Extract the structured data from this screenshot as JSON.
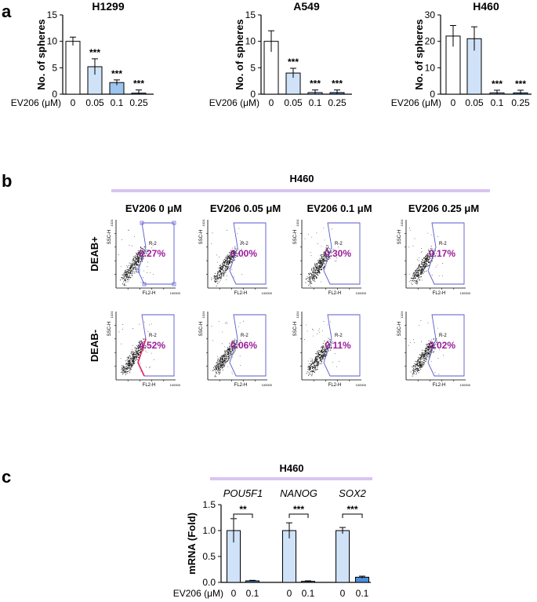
{
  "figure": {
    "panel_labels": {
      "a": "a",
      "b": "b",
      "c": "c"
    },
    "colors": {
      "white_bar": "#ffffff",
      "light_blue_bar": "#cfe2f8",
      "mid_blue_bar": "#9cc5ef",
      "dark_blue_bar": "#4b8fdc",
      "lavender_rule": "#d8c4f2",
      "gate_blue": "#5a5acd",
      "percent_purple": "#9b1c9b",
      "gate_pink": "#e0205a"
    }
  },
  "chart_data": [
    {
      "type": "bar",
      "panel": "a",
      "title": "H1299",
      "ylabel": "No. of spheres",
      "xlabel_prefix": "EV206 (μM)",
      "categories": [
        "0",
        "0.05",
        "0.1",
        "0.25"
      ],
      "values": [
        10,
        5.2,
        2.2,
        0.2
      ],
      "errors": [
        0.8,
        1.5,
        0.5,
        0.6
      ],
      "significance": [
        "",
        "***",
        "***",
        "***"
      ],
      "bar_colors": [
        "#ffffff",
        "#cfe2f8",
        "#9cc5ef",
        "#4b8fdc"
      ],
      "ylim": [
        0,
        15
      ],
      "yticks": [
        "0",
        "5",
        "10",
        "15"
      ]
    },
    {
      "type": "bar",
      "panel": "a",
      "title": "A549",
      "ylabel": "No. of spheres",
      "xlabel_prefix": "EV206 (μM)",
      "categories": [
        "0",
        "0.05",
        "0.1",
        "0.25"
      ],
      "values": [
        10,
        4,
        0.3,
        0.3
      ],
      "errors": [
        2,
        0.9,
        0.5,
        0.5
      ],
      "significance": [
        "",
        "***",
        "***",
        "***"
      ],
      "bar_colors": [
        "#ffffff",
        "#cfe2f8",
        "#9cc5ef",
        "#4b8fdc"
      ],
      "ylim": [
        0,
        15
      ],
      "yticks": [
        "0",
        "5",
        "10",
        "15"
      ]
    },
    {
      "type": "bar",
      "panel": "a",
      "title": "H460",
      "ylabel": "No. of spheres",
      "xlabel_prefix": "EV206 (μM)",
      "categories": [
        "0",
        "0.05",
        "0.1",
        "0.25"
      ],
      "values": [
        22,
        21,
        0.5,
        0.5
      ],
      "errors": [
        4,
        4.5,
        1,
        1
      ],
      "significance": [
        "",
        "",
        "***",
        "***"
      ],
      "bar_colors": [
        "#ffffff",
        "#cfe2f8",
        "#9cc5ef",
        "#4b8fdc"
      ],
      "ylim": [
        0,
        30
      ],
      "yticks": [
        "0",
        "10",
        "20",
        "30"
      ]
    },
    {
      "type": "scatter",
      "panel": "b",
      "title": "H460",
      "columns": [
        "EV206 0 μM",
        "EV206 0.05 μM",
        "EV206 0.1 μM",
        "EV206 0.25 μM"
      ],
      "rows": [
        "DEAB+",
        "DEAB-"
      ],
      "percentages": [
        [
          "0.27%",
          "0.00%",
          "0.30%",
          "0.17%"
        ],
        [
          "4.52%",
          "0.06%",
          "0.11%",
          "0.02%"
        ]
      ],
      "gate_label": "R-2",
      "xlabel": "FL2-H",
      "ylabel": "SSC-H",
      "x_max_tick": "100000",
      "y_max_tick": "1024"
    },
    {
      "type": "bar",
      "panel": "c",
      "title": "H460",
      "ylabel": "mRNA (Fold)",
      "xlabel_prefix": "EV206 (μM)",
      "groups": [
        "POU5F1",
        "NANOG",
        "SOX2"
      ],
      "categories": [
        "0",
        "0.1"
      ],
      "series_values": [
        [
          1.0,
          0.03
        ],
        [
          1.0,
          0.02
        ],
        [
          1.0,
          0.1
        ]
      ],
      "errors": [
        [
          0.23,
          0.01
        ],
        [
          0.15,
          0.01
        ],
        [
          0.06,
          0.02
        ]
      ],
      "significance": [
        "**",
        "***",
        "***"
      ],
      "bar_colors": [
        "#cfe2f8",
        "#4b8fdc"
      ],
      "ylim": [
        0,
        1.5
      ],
      "yticks": [
        "0.0",
        "0.5",
        "1.0",
        "1.5"
      ]
    }
  ]
}
